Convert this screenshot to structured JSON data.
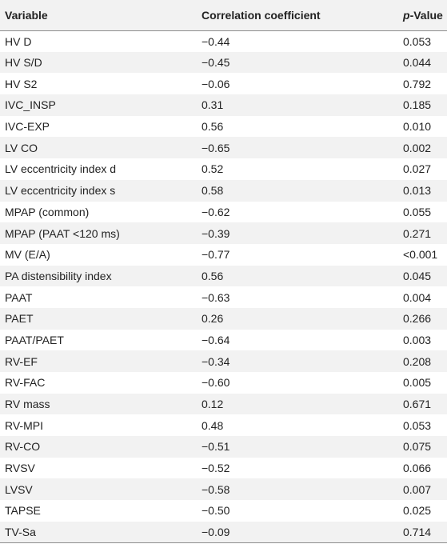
{
  "table": {
    "headers": {
      "variable": "Variable",
      "correlation": "Correlation coefficient",
      "pvalue_italic": "p",
      "pvalue_rest": "-Value"
    },
    "rows": [
      {
        "variable": "HV D",
        "correlation": "−0.44",
        "pvalue": "0.053"
      },
      {
        "variable": "HV S/D",
        "correlation": "−0.45",
        "pvalue": "0.044"
      },
      {
        "variable": "HV S2",
        "correlation": "−0.06",
        "pvalue": "0.792"
      },
      {
        "variable": "IVC_INSP",
        "correlation": "0.31",
        "pvalue": "0.185"
      },
      {
        "variable": "IVC-EXP",
        "correlation": "0.56",
        "pvalue": "0.010"
      },
      {
        "variable": "LV CO",
        "correlation": "−0.65",
        "pvalue": "0.002"
      },
      {
        "variable": "LV eccentricity index d",
        "correlation": "0.52",
        "pvalue": "0.027"
      },
      {
        "variable": "LV eccentricity index s",
        "correlation": "0.58",
        "pvalue": "0.013"
      },
      {
        "variable": "MPAP (common)",
        "correlation": "−0.62",
        "pvalue": "0.055"
      },
      {
        "variable": "MPAP (PAAT <120 ms)",
        "correlation": "−0.39",
        "pvalue": "0.271"
      },
      {
        "variable": "MV (E/A)",
        "correlation": "−0.77",
        "pvalue": "<0.001"
      },
      {
        "variable": "PA distensibility index",
        "correlation": "0.56",
        "pvalue": "0.045"
      },
      {
        "variable": "PAAT",
        "correlation": "−0.63",
        "pvalue": "0.004"
      },
      {
        "variable": "PAET",
        "correlation": "0.26",
        "pvalue": "0.266"
      },
      {
        "variable": "PAAT/PAET",
        "correlation": "−0.64",
        "pvalue": "0.003"
      },
      {
        "variable": "RV-EF",
        "correlation": "−0.34",
        "pvalue": "0.208"
      },
      {
        "variable": "RV-FAC",
        "correlation": "−0.60",
        "pvalue": "0.005"
      },
      {
        "variable": "RV mass",
        "correlation": "0.12",
        "pvalue": "0.671"
      },
      {
        "variable": "RV-MPI",
        "correlation": "0.48",
        "pvalue": "0.053"
      },
      {
        "variable": "RV-CO",
        "correlation": "−0.51",
        "pvalue": "0.075"
      },
      {
        "variable": "RVSV",
        "correlation": "−0.52",
        "pvalue": "0.066"
      },
      {
        "variable": "LVSV",
        "correlation": "−0.58",
        "pvalue": "0.007"
      },
      {
        "variable": "TAPSE",
        "correlation": "−0.50",
        "pvalue": "0.025"
      },
      {
        "variable": "TV-Sa",
        "correlation": "−0.09",
        "pvalue": "0.714"
      }
    ]
  }
}
